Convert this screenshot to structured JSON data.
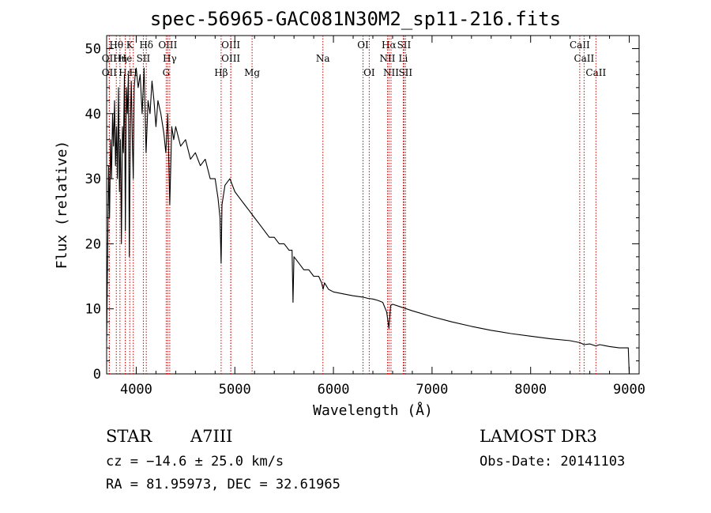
{
  "chart_data": {
    "type": "line",
    "title": "spec-56965-GAC081N30M2_sp11-216.fits",
    "xlabel": "Wavelength (Å)",
    "ylabel": "Flux (relative)",
    "xlim": [
      3700,
      9100
    ],
    "ylim": [
      0,
      52
    ],
    "xticks": [
      4000,
      5000,
      6000,
      7000,
      8000,
      9000
    ],
    "yticks": [
      0,
      10,
      20,
      30,
      40,
      50
    ],
    "series": [
      {
        "name": "spectrum",
        "x": [
          3700,
          3710,
          3720,
          3730,
          3740,
          3750,
          3760,
          3770,
          3780,
          3790,
          3800,
          3810,
          3820,
          3830,
          3840,
          3850,
          3860,
          3870,
          3880,
          3890,
          3900,
          3910,
          3920,
          3930,
          3940,
          3950,
          3960,
          3970,
          3980,
          3990,
          4000,
          4020,
          4040,
          4060,
          4080,
          4100,
          4120,
          4140,
          4160,
          4180,
          4200,
          4220,
          4250,
          4280,
          4300,
          4320,
          4340,
          4360,
          4380,
          4400,
          4450,
          4500,
          4550,
          4600,
          4650,
          4700,
          4750,
          4800,
          4830,
          4850,
          4861,
          4870,
          4900,
          4950,
          5000,
          5050,
          5100,
          5150,
          5200,
          5250,
          5300,
          5350,
          5400,
          5450,
          5500,
          5550,
          5580,
          5590,
          5600,
          5650,
          5700,
          5750,
          5800,
          5850,
          5880,
          5895,
          5910,
          5950,
          6000,
          6100,
          6200,
          6300,
          6350,
          6400,
          6450,
          6500,
          6540,
          6563,
          6580,
          6600,
          6700,
          6800,
          7000,
          7200,
          7400,
          7600,
          7800,
          8000,
          8200,
          8400,
          8500,
          8542,
          8600,
          8662,
          8700,
          8800,
          8900,
          8990,
          9000
        ],
        "values": [
          5,
          18,
          32,
          24,
          36,
          30,
          40,
          35,
          42,
          32,
          38,
          30,
          44,
          28,
          36,
          20,
          38,
          34,
          46,
          22,
          44,
          40,
          46,
          18,
          38,
          45,
          36,
          30,
          44,
          46,
          47,
          44,
          46,
          40,
          47,
          34,
          42,
          40,
          45,
          42,
          38,
          42,
          40,
          37,
          34,
          40,
          26,
          38,
          36,
          38,
          35,
          36,
          33,
          34,
          32,
          33,
          30,
          30,
          27,
          24,
          17,
          26,
          29,
          30,
          28,
          27,
          26,
          25,
          24,
          23,
          22,
          21,
          21,
          20,
          20,
          19,
          19,
          11,
          18,
          17,
          16,
          16,
          15,
          15,
          14,
          13,
          14,
          13,
          12.6,
          12.3,
          12,
          11.8,
          11.6,
          11.5,
          11.3,
          11,
          9.5,
          7,
          10.5,
          10.7,
          10.2,
          9.7,
          8.8,
          8,
          7.3,
          6.7,
          6.2,
          5.8,
          5.4,
          5.1,
          4.8,
          4.5,
          4.6,
          4.3,
          4.5,
          4.2,
          4,
          4,
          0
        ]
      }
    ],
    "lines": [
      {
        "label": "Hθ",
        "x": 3798,
        "row": 0
      },
      {
        "label": "OII",
        "x": 3727,
        "row": 1
      },
      {
        "label": "Hη",
        "x": 3835,
        "row": 1
      },
      {
        "label": "OII",
        "x": 3727,
        "row": 2
      },
      {
        "label": "Hε",
        "x": 3889,
        "row": 2
      },
      {
        "label": "K",
        "x": 3934,
        "row": 0
      },
      {
        "label": "He",
        "x": 3889,
        "row": 1
      },
      {
        "label": "H",
        "x": 3970,
        "row": 2
      },
      {
        "label": "SII",
        "x": 4072,
        "row": 1
      },
      {
        "label": "Hδ",
        "x": 4102,
        "row": 0
      },
      {
        "label": "OIII",
        "x": 4320,
        "row": 0
      },
      {
        "label": "Hγ",
        "x": 4340,
        "row": 1
      },
      {
        "label": "G",
        "x": 4304,
        "row": 2
      },
      {
        "label": "Hβ",
        "x": 4861,
        "row": 2
      },
      {
        "label": "OIII",
        "x": 4959,
        "row": 0
      },
      {
        "label": "OIII",
        "x": 4959,
        "row": 1
      },
      {
        "label": "Mg",
        "x": 5175,
        "row": 2
      },
      {
        "label": "Na",
        "x": 5893,
        "row": 1
      },
      {
        "label": "OI",
        "x": 6300,
        "row": 0
      },
      {
        "label": "OI",
        "x": 6363,
        "row": 2
      },
      {
        "label": "Hα",
        "x": 6563,
        "row": 0
      },
      {
        "label": "SII",
        "x": 6716,
        "row": 0
      },
      {
        "label": "NII",
        "x": 6548,
        "row": 1
      },
      {
        "label": "Li",
        "x": 6708,
        "row": 1
      },
      {
        "label": "NII",
        "x": 6584,
        "row": 2
      },
      {
        "label": "SII",
        "x": 6731,
        "row": 2
      },
      {
        "label": "CaII",
        "x": 8498,
        "row": 0
      },
      {
        "label": "CaII",
        "x": 8542,
        "row": 1
      },
      {
        "label": "CaII",
        "x": 8662,
        "row": 2
      }
    ]
  },
  "info": {
    "object_type": "STAR",
    "subclass": "A7III",
    "survey": "LAMOST DR3",
    "cz": "cz = −14.6 ± 25.0 km/s",
    "obs_date": "Obs-Date: 20141103",
    "radec": "RA =  81.95973, DEC =  32.61965"
  },
  "colors": {
    "axis": "#000000",
    "spectrum": "#000000",
    "lines": "#cc0000"
  }
}
